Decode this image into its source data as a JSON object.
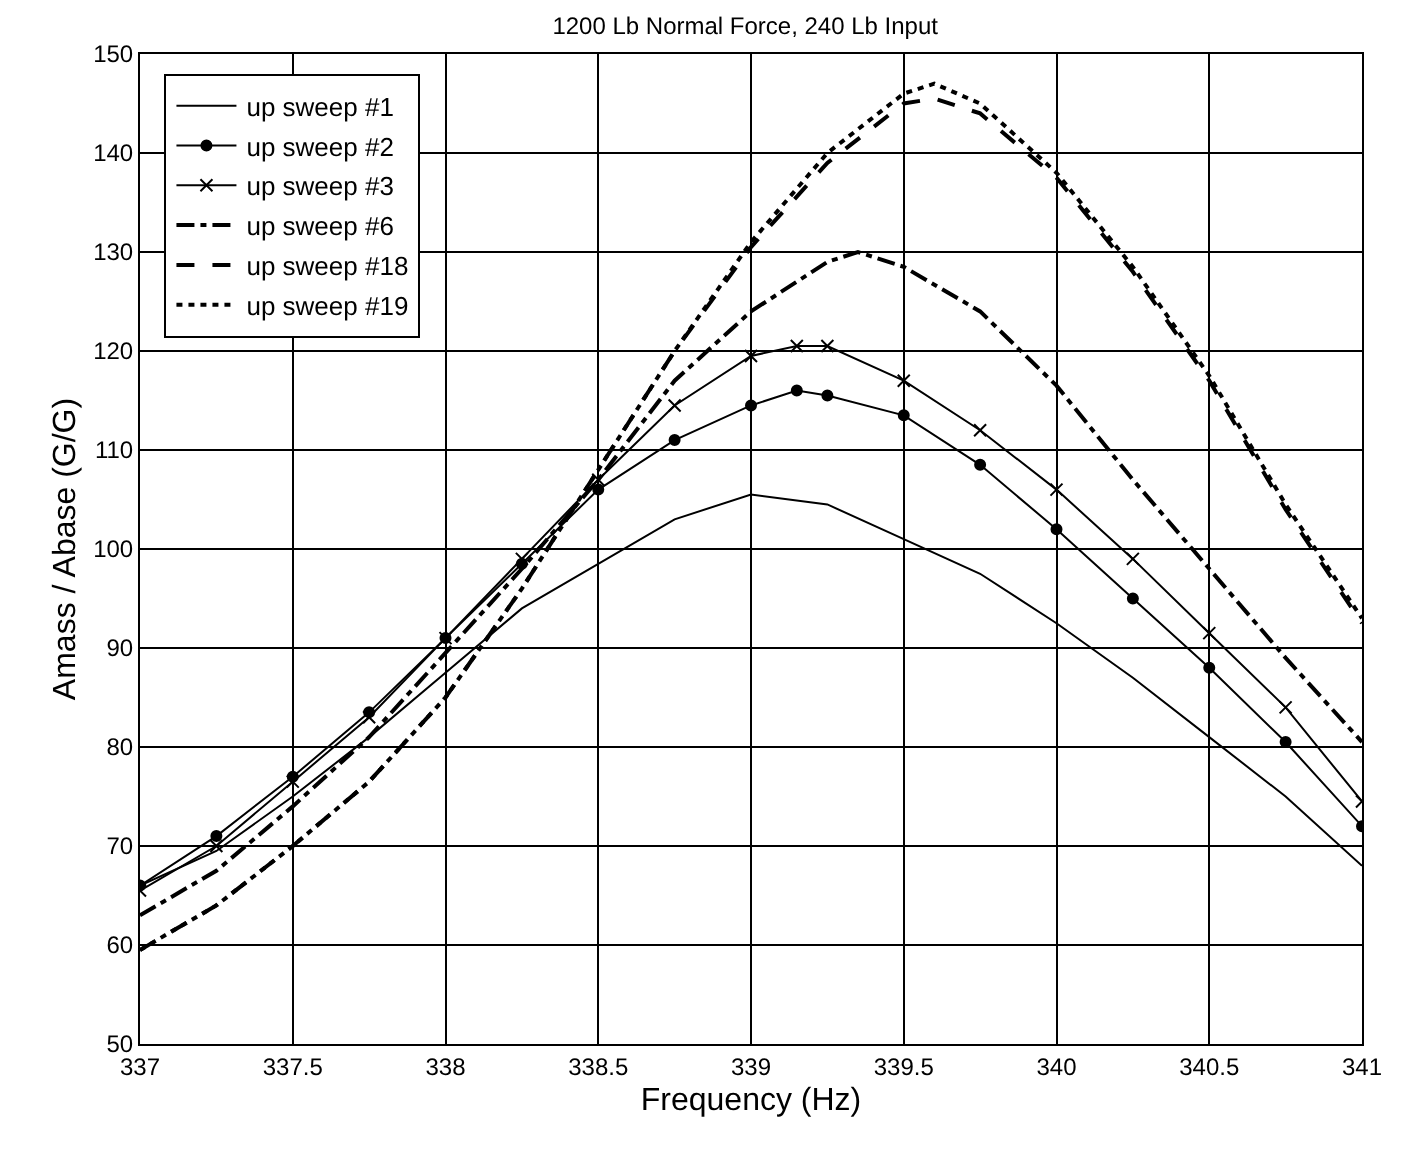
{
  "chart_data": {
    "type": "line",
    "title": "1200 Lb Normal Force, 240 Lb Input",
    "xlabel": "Frequency (Hz)",
    "ylabel": "Amass / Abase (G/G)",
    "xlim": [
      337,
      341
    ],
    "xticks": [
      337,
      337.5,
      338,
      338.5,
      339,
      339.5,
      340,
      340.5,
      341
    ],
    "ylim": [
      50,
      150
    ],
    "yticks": [
      50,
      60,
      70,
      80,
      90,
      100,
      110,
      120,
      130,
      140,
      150
    ],
    "grid": true,
    "legend": "top left",
    "series": [
      {
        "name": "up sweep #1",
        "color": "#000000",
        "marker": "none",
        "line_style": "solid",
        "x": [
          337,
          337.25,
          337.5,
          337.75,
          338,
          338.25,
          338.5,
          338.75,
          339,
          339.25,
          339.5,
          339.75,
          340,
          340.25,
          340.5,
          340.75,
          341
        ],
        "values": [
          66,
          69.5,
          75,
          81,
          87.5,
          94,
          98.5,
          103,
          105.5,
          104.5,
          101,
          97.5,
          92.5,
          87,
          81,
          75,
          68
        ]
      },
      {
        "name": "up sweep #2",
        "color": "#000000",
        "marker": "circle",
        "line_style": "solid",
        "x": [
          337,
          337.25,
          337.5,
          337.75,
          338,
          338.25,
          338.5,
          338.75,
          339,
          339.15,
          339.25,
          339.5,
          339.75,
          340,
          340.25,
          340.5,
          340.75,
          341
        ],
        "values": [
          66,
          71,
          77,
          83.5,
          91,
          98.5,
          106,
          111,
          114.5,
          116,
          115.5,
          113.5,
          108.5,
          102,
          95,
          88,
          80.5,
          72
        ]
      },
      {
        "name": "up sweep #3",
        "color": "#000000",
        "marker": "cross",
        "line_style": "solid",
        "x": [
          337,
          337.25,
          337.5,
          337.75,
          338,
          338.25,
          338.5,
          338.75,
          339,
          339.15,
          339.25,
          339.5,
          339.75,
          340,
          340.25,
          340.5,
          340.75,
          341
        ],
        "values": [
          65.5,
          70,
          76.5,
          83,
          91,
          99,
          107,
          114.5,
          119.5,
          120.5,
          120.5,
          117,
          112,
          106,
          99,
          91.5,
          84,
          74.5
        ]
      },
      {
        "name": "up sweep #6",
        "color": "#000000",
        "marker": "none",
        "line_style": "dashdot",
        "x": [
          337,
          337.25,
          337.5,
          337.75,
          338,
          338.25,
          338.5,
          338.75,
          339,
          339.25,
          339.35,
          339.5,
          339.75,
          340,
          340.25,
          340.5,
          340.75,
          341
        ],
        "values": [
          63,
          67.5,
          74,
          81,
          89.5,
          98,
          107,
          117,
          124,
          129,
          130,
          128.5,
          124,
          116.5,
          107,
          98,
          89,
          80.5
        ]
      },
      {
        "name": "up sweep #18",
        "color": "#000000",
        "marker": "none",
        "line_style": "dashed",
        "x": [
          337,
          337.25,
          337.5,
          337.75,
          338,
          338.25,
          338.5,
          338.75,
          339,
          339.25,
          339.5,
          339.6,
          339.75,
          340,
          340.25,
          340.5,
          340.75,
          341
        ],
        "values": [
          59.5,
          64,
          70,
          76.5,
          85,
          96,
          108,
          120,
          130.5,
          139,
          145,
          145.5,
          144,
          137.5,
          128,
          117,
          104,
          92.5
        ]
      },
      {
        "name": "up sweep #19",
        "color": "#000000",
        "marker": "none",
        "line_style": "dotted",
        "x": [
          337,
          337.25,
          337.5,
          337.75,
          338,
          338.25,
          338.5,
          338.75,
          339,
          339.25,
          339.5,
          339.6,
          339.75,
          340,
          340.25,
          340.5,
          340.75,
          341
        ],
        "values": [
          59.5,
          64,
          70,
          76.5,
          85,
          96,
          108,
          120,
          131,
          140,
          146,
          147,
          145,
          138,
          128.5,
          117.5,
          104.5,
          93
        ]
      }
    ]
  }
}
